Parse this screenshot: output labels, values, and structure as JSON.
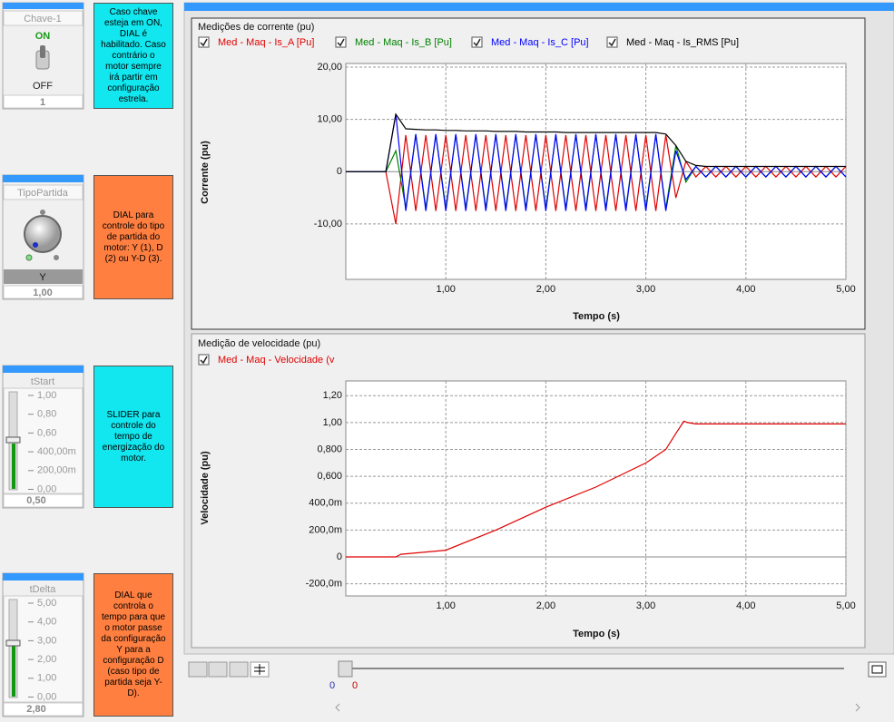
{
  "chart_data": [
    {
      "type": "line",
      "title": "Medições de corrente (pu)",
      "ylabel": "Corrente (pu)",
      "xlabel": "Tempo (s)",
      "grid": true,
      "xlim": [
        0,
        5
      ],
      "ylim": [
        -20.6,
        20.7
      ],
      "xticks": [
        {
          "value": 1,
          "label": "1,00"
        },
        {
          "value": 2,
          "label": "2,00"
        },
        {
          "value": 3,
          "label": "3,00"
        },
        {
          "value": 4,
          "label": "4,00"
        },
        {
          "value": 5,
          "label": "5,00"
        }
      ],
      "yticks": [
        {
          "value": 20,
          "label": "20,00"
        },
        {
          "value": 10,
          "label": "10,00"
        },
        0,
        {
          "value": -10,
          "label": "-10,00"
        }
      ],
      "x": [
        0,
        0.1,
        0.2,
        0.3,
        0.4,
        0.5,
        0.6,
        0.7,
        0.8,
        0.9,
        1,
        1.1,
        1.2,
        1.3,
        1.4,
        1.5,
        1.6,
        1.7,
        1.8,
        1.9,
        2,
        2.1,
        2.2,
        2.3,
        2.4,
        2.5,
        2.6,
        2.7,
        2.8,
        2.9,
        3,
        3.1,
        3.2,
        3.3,
        3.4,
        3.5,
        3.6,
        3.7,
        3.8,
        3.9,
        4,
        4.1,
        4.2,
        4.3,
        4.4,
        4.5,
        4.6,
        4.7,
        4.8,
        4.9,
        5
      ],
      "series": [
        {
          "name": "Med - Maq - Is_A [Pu]",
          "color": "#e00000",
          "values": [
            0,
            0,
            0,
            0,
            0,
            -10,
            7,
            -7.5,
            7,
            -7.5,
            7,
            -7.5,
            7,
            -7.5,
            7,
            -7.5,
            7,
            -7.5,
            7,
            -7.5,
            7,
            -7.5,
            7,
            -7.5,
            7,
            -7.5,
            7,
            -7.5,
            7,
            -7.5,
            7,
            -7.5,
            7,
            -5,
            2,
            -1,
            1,
            -1,
            1,
            -1,
            1,
            -1,
            1,
            -1,
            1,
            -1,
            1,
            -1,
            1,
            -1,
            1
          ]
        },
        {
          "name": "Med - Maq - Is_B [Pu]",
          "color": "#008000",
          "values": [
            0,
            0,
            0,
            0,
            0,
            4,
            -7,
            7,
            -7,
            7,
            -7,
            7,
            -7,
            7,
            -7,
            7,
            -7,
            7,
            -7,
            7,
            -7,
            7,
            -7,
            7,
            -7,
            7,
            -7,
            7,
            -7,
            7,
            -7,
            7,
            -7,
            5,
            -2,
            1,
            -1,
            1,
            -1,
            1,
            -1,
            1,
            -1,
            1,
            -1,
            1,
            -1,
            1,
            -1,
            1,
            -1
          ]
        },
        {
          "name": "Med - Maq - Is_C [Pu]",
          "color": "#0000ff",
          "values": [
            0,
            0,
            0,
            0,
            0,
            11,
            -7.5,
            7.2,
            -7.5,
            7.2,
            -7.5,
            7.2,
            -7.5,
            7.2,
            -7.5,
            7.2,
            -7.5,
            7.2,
            -7.5,
            7.2,
            -7.5,
            7.2,
            -7.5,
            7.2,
            -7.5,
            7.2,
            -7.5,
            7.2,
            -7.5,
            7.2,
            -7.5,
            7.2,
            -7.5,
            4,
            -1.5,
            1,
            -1,
            1,
            -1,
            1,
            -1,
            1,
            -1,
            1,
            -1,
            1,
            -1,
            1,
            -1,
            1,
            -1
          ]
        },
        {
          "name": "Med - Maq - Is_RMS [Pu]",
          "color": "#000000",
          "values": [
            0,
            0,
            0,
            0,
            0,
            11,
            8.2,
            8.1,
            8,
            8,
            7.9,
            7.9,
            7.8,
            7.8,
            7.8,
            7.7,
            7.7,
            7.7,
            7.6,
            7.6,
            7.6,
            7.6,
            7.5,
            7.5,
            7.5,
            7.5,
            7.5,
            7.5,
            7.5,
            7.5,
            7.5,
            7.5,
            7.2,
            5,
            2,
            1.2,
            1,
            1,
            1,
            1,
            1,
            1,
            1,
            1,
            1,
            1,
            1,
            1,
            1,
            1,
            1
          ]
        }
      ]
    },
    {
      "type": "line",
      "title": "Medição de velocidade (pu)",
      "ylabel": "Velocidade (pu)",
      "xlabel": "Tempo (s)",
      "grid": true,
      "xlim": [
        0,
        5
      ],
      "ylim": [
        -0.29,
        1.31
      ],
      "xticks": [
        {
          "value": 1,
          "label": "1,00"
        },
        {
          "value": 2,
          "label": "2,00"
        },
        {
          "value": 3,
          "label": "3,00"
        },
        {
          "value": 4,
          "label": "4,00"
        },
        {
          "value": 5,
          "label": "5,00"
        }
      ],
      "yticks": [
        {
          "value": 1.2,
          "label": "1,20"
        },
        {
          "value": 1,
          "label": "1,00"
        },
        {
          "value": 0.8,
          "label": "0,800"
        },
        {
          "value": 0.6,
          "label": "0,600"
        },
        {
          "value": 0.4,
          "label": "400,0m"
        },
        {
          "value": 0.2,
          "label": "200,0m"
        },
        0,
        {
          "value": -0.2,
          "label": "-200,0m"
        }
      ],
      "x": [
        0,
        0.5,
        0.55,
        0.7,
        1,
        1.5,
        2,
        2.5,
        3,
        3.2,
        3.3,
        3.38,
        3.42,
        3.5,
        4,
        5
      ],
      "series": [
        {
          "name": "Med - Maq - Velocidade (v",
          "color": "#e00000",
          "values": [
            0,
            0,
            0.02,
            0.03,
            0.05,
            0.2,
            0.37,
            0.52,
            0.7,
            0.8,
            0.92,
            1.01,
            1,
            0.99,
            0.99,
            0.99
          ]
        }
      ]
    }
  ],
  "widgets": [
    {
      "title": "Chave-1",
      "on": "ON",
      "off": "OFF",
      "value": "1"
    },
    {
      "title": "TipoPartida",
      "state": "Y",
      "value": "1,00"
    },
    {
      "title": "tStart",
      "scale": [
        "1,00",
        "0,80",
        "0,60",
        "400,00m",
        "200,00m",
        "0,00"
      ],
      "value": "0,50"
    },
    {
      "title": "tDelta",
      "scale": [
        "5,00",
        "4,00",
        "3,00",
        "2,00",
        "1,00",
        "0,00"
      ],
      "value": "2,80"
    }
  ],
  "notes": [
    "Caso chave esteja em ON, DIAL é habilitado. Caso contrário o motor sempre irá partir em configuração estrela.",
    "DIAL para controle do tipo de partida do motor: Y (1), D (2) ou Y-D (3).",
    "SLIDER para controle do tempo de energização do motor.",
    "DIAL que controla o tempo para que o motor passe da configuração Y para a configuração D (caso tipo de partida seja Y-D)."
  ],
  "timeline": {
    "markers": [
      "0",
      "0"
    ]
  }
}
